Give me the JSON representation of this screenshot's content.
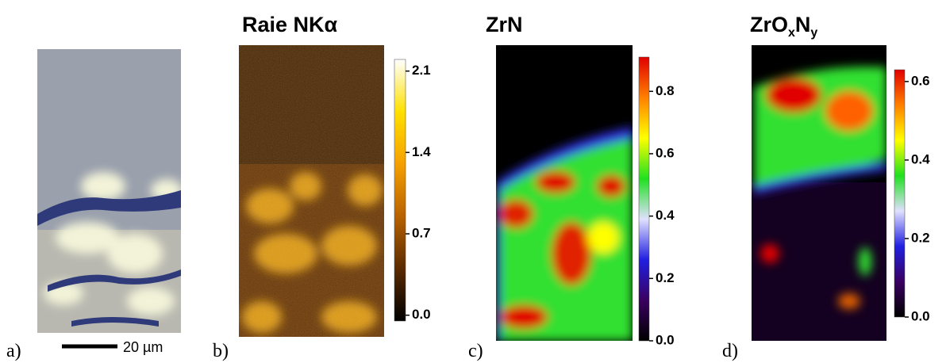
{
  "panels": [
    {
      "label": "a)",
      "scale_bar": "20 µm"
    },
    {
      "label": "b)",
      "title": [
        {
          "text": "Raie NKα"
        }
      ],
      "colorbar": {
        "lim": [
          -0.05,
          2.2
        ],
        "ticks": [
          2.1,
          1.4,
          0.7,
          {
            "value": 0,
            "label": "0.0"
          }
        ],
        "colormap": [
          "#000000",
          "#5a2a00",
          "#b86200",
          "#f5a000",
          "#ffe000",
          "#ffffff"
        ]
      }
    },
    {
      "label": "c)",
      "title": [
        {
          "text": "ZrN"
        }
      ],
      "colorbar": {
        "lim": [
          0,
          0.91
        ],
        "ticks": [
          0.8,
          0.6,
          0.4,
          0.2,
          {
            "value": 0,
            "label": "0.0"
          }
        ],
        "colormap": [
          "#000000",
          "#3a0060",
          "#2020e0",
          "#e0e0ff",
          "#20e020",
          "#ffff00",
          "#ff8000",
          "#e00000"
        ]
      }
    },
    {
      "label": "d)",
      "title": [
        {
          "text": "ZrO"
        },
        {
          "text": "x",
          "sub": true
        },
        {
          "text": "N"
        },
        {
          "text": "y",
          "sub": true
        }
      ],
      "colorbar": {
        "lim": [
          0,
          0.63
        ],
        "ticks": [
          0.6,
          0.4,
          0.2,
          {
            "value": 0,
            "label": "0.0"
          }
        ],
        "colormap": [
          "#000000",
          "#3a0060",
          "#2020e0",
          "#e0e0ff",
          "#20e020",
          "#ffff00",
          "#ff8000",
          "#e00000"
        ]
      }
    }
  ]
}
